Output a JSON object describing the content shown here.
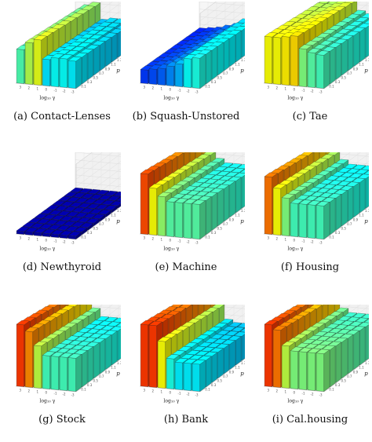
{
  "chart_data": [
    {
      "type": "bar",
      "panel_label": "(a)",
      "title": "Contact-Lenses",
      "ylabel": "MZE",
      "xlabel": "log₁₀ γ",
      "plabel": "p",
      "zlim": [
        0,
        1.0
      ],
      "z_ticks": [
        "1.0",
        "0.9",
        "0.8",
        "0.7",
        "0.6",
        "0.5",
        "0.4",
        "0.3",
        "0.2",
        "0.1",
        "0.0"
      ],
      "x_ticks": [
        "3",
        "2",
        "1",
        "0",
        "-1",
        "-2",
        "-3"
      ],
      "p_ticks": [
        "0.1",
        "0.3",
        "0.5",
        "0.7",
        "0.9",
        "1.1",
        "1.3",
        "1.5",
        "1.7",
        "1.9"
      ],
      "heights": [
        0.45,
        0.55,
        0.6,
        0.35,
        0.38,
        0.38,
        0.36
      ]
    },
    {
      "type": "bar",
      "panel_label": "(b)",
      "title": "Squash-Unstored",
      "ylabel": "MZE",
      "xlabel": "log₁₀ γ",
      "plabel": "p",
      "zlim": [
        0,
        1.0
      ],
      "z_ticks": [
        "1.0",
        "0.9",
        "0.8",
        "0.7",
        "0.6",
        "0.5",
        "0.4",
        "0.3",
        "0.2",
        "0.1",
        "0.0"
      ],
      "x_ticks": [
        "3",
        "2",
        "1",
        "0",
        "-1",
        "-2",
        "-3"
      ],
      "p_ticks": [
        "0.1",
        "0.3",
        "0.5",
        "0.7",
        "0.9",
        "1.1",
        "1.3",
        "1.5",
        "1.7",
        "1.9"
      ],
      "heights": [
        0.18,
        0.2,
        0.22,
        0.26,
        0.3,
        0.38,
        0.4
      ]
    },
    {
      "type": "bar",
      "panel_label": "(c)",
      "title": "Tae",
      "ylabel": "MZE",
      "xlabel": "log₁₀ γ",
      "plabel": "p",
      "zlim": [
        0,
        1.0
      ],
      "z_ticks": [
        "1.0",
        "0.9",
        "0.8",
        "0.7",
        "0.6",
        "0.5",
        "0.4",
        "0.3",
        "0.2",
        "0.1",
        "0.0"
      ],
      "x_ticks": [
        "3",
        "2",
        "1",
        "0",
        "-1",
        "-2",
        "-3"
      ],
      "p_ticks": [
        "0.1",
        "0.3",
        "0.5",
        "0.7",
        "0.9",
        "1.1",
        "1.3",
        "1.5",
        "1.7",
        "1.9"
      ],
      "heights": [
        0.62,
        0.62,
        0.64,
        0.66,
        0.5,
        0.46,
        0.44
      ]
    },
    {
      "type": "bar",
      "panel_label": "(d)",
      "title": "Newthyroid",
      "ylabel": "MZE",
      "xlabel": "log₁₀ γ",
      "plabel": "p",
      "zlim": [
        0,
        1.0
      ],
      "z_ticks": [
        "1.0",
        "0.9",
        "0.8",
        "0.7",
        "0.6",
        "0.5",
        "0.4",
        "0.3",
        "0.2",
        "0.1",
        "0.0"
      ],
      "x_ticks": [
        "3",
        "2",
        "1",
        "0",
        "-1",
        "-2",
        "-3"
      ],
      "p_ticks": [
        "0.1",
        "0.3",
        "0.5",
        "0.7",
        "0.9",
        "1.1",
        "1.3",
        "1.5",
        "1.7",
        "1.9"
      ],
      "heights": [
        0.04,
        0.04,
        0.04,
        0.04,
        0.04,
        0.04,
        0.04
      ]
    },
    {
      "type": "bar",
      "panel_label": "(e)",
      "title": "Machine",
      "ylabel": "MZE",
      "xlabel": "log₁₀ γ",
      "plabel": "p",
      "zlim": [
        0,
        1.0
      ],
      "z_ticks": [
        "1.0",
        "0.9",
        "0.8",
        "0.7",
        "0.6",
        "0.5",
        "0.4",
        "0.3",
        "0.2",
        "0.1",
        "0.0"
      ],
      "x_ticks": [
        "3",
        "2",
        "1",
        "0",
        "-1",
        "-2",
        "-3"
      ],
      "p_ticks": [
        "0.1",
        "0.3",
        "0.5",
        "0.7",
        "0.9",
        "1.1",
        "1.3",
        "1.5",
        "1.7",
        "1.9"
      ],
      "heights": [
        0.8,
        0.62,
        0.52,
        0.46,
        0.46,
        0.46,
        0.46
      ]
    },
    {
      "type": "bar",
      "panel_label": "(f)",
      "title": "Housing",
      "ylabel": "MZE",
      "xlabel": "log₁₀ γ",
      "plabel": "p",
      "zlim": [
        0,
        1.0
      ],
      "z_ticks": [
        "1.0",
        "0.9",
        "0.8",
        "0.7",
        "0.6",
        "0.5",
        "0.4",
        "0.3",
        "0.2",
        "0.1",
        "0.0"
      ],
      "x_ticks": [
        "3",
        "2",
        "1",
        "0",
        "-1",
        "-2",
        "-3"
      ],
      "p_ticks": [
        "0.1",
        "0.3",
        "0.5",
        "0.7",
        "0.9",
        "1.1",
        "1.3",
        "1.5",
        "1.7",
        "1.9"
      ],
      "heights": [
        0.76,
        0.62,
        0.5,
        0.44,
        0.44,
        0.44,
        0.44
      ]
    },
    {
      "type": "bar",
      "panel_label": "(g)",
      "title": "Stock",
      "ylabel": "MZE",
      "xlabel": "log₁₀ γ",
      "plabel": "p",
      "zlim": [
        0,
        1.0
      ],
      "z_ticks": [
        "1.0",
        "0.9",
        "0.8",
        "0.7",
        "0.6",
        "0.5",
        "0.4",
        "0.3",
        "0.2",
        "0.1",
        "0.0"
      ],
      "x_ticks": [
        "3",
        "2",
        "1",
        "0",
        "-1",
        "-2",
        "-3"
      ],
      "p_ticks": [
        "0.1",
        "0.3",
        "0.5",
        "0.7",
        "0.9",
        "1.1",
        "1.3",
        "1.5",
        "1.7",
        "1.9"
      ],
      "heights": [
        0.82,
        0.74,
        0.56,
        0.44,
        0.44,
        0.44,
        0.44
      ]
    },
    {
      "type": "bar",
      "panel_label": "(h)",
      "title": "Bank",
      "ylabel": "MZE",
      "xlabel": "log₁₀ γ",
      "plabel": "p",
      "zlim": [
        0,
        1.0
      ],
      "z_ticks": [
        "1.0",
        "0.9",
        "0.8",
        "0.7",
        "0.6",
        "0.5",
        "0.4",
        "0.3",
        "0.2",
        "0.1",
        "0.0"
      ],
      "x_ticks": [
        "3",
        "2",
        "1",
        "0",
        "-1",
        "-2",
        "-3"
      ],
      "p_ticks": [
        "0.1",
        "0.3",
        "0.5",
        "0.7",
        "0.9",
        "1.1",
        "1.3",
        "1.5",
        "1.7",
        "1.9"
      ],
      "heights": [
        0.82,
        0.82,
        0.62,
        0.4,
        0.36,
        0.36,
        0.36
      ]
    },
    {
      "type": "bar",
      "panel_label": "(i)",
      "title": "Cal.housing",
      "ylabel": "MZE",
      "xlabel": "log₁₀ γ",
      "plabel": "p",
      "zlim": [
        0,
        1.0
      ],
      "z_ticks": [
        "1.0",
        "0.9",
        "0.8",
        "0.7",
        "0.6",
        "0.5",
        "0.4",
        "0.3",
        "0.2",
        "0.1",
        "0.0"
      ],
      "x_ticks": [
        "3",
        "2",
        "1",
        "0",
        "-1",
        "-2",
        "-3"
      ],
      "p_ticks": [
        "0.1",
        "0.3",
        "0.5",
        "0.7",
        "0.9",
        "1.1",
        "1.3",
        "1.5",
        "1.7",
        "1.9"
      ],
      "heights": [
        0.82,
        0.76,
        0.56,
        0.5,
        0.5,
        0.5,
        0.5
      ]
    }
  ]
}
